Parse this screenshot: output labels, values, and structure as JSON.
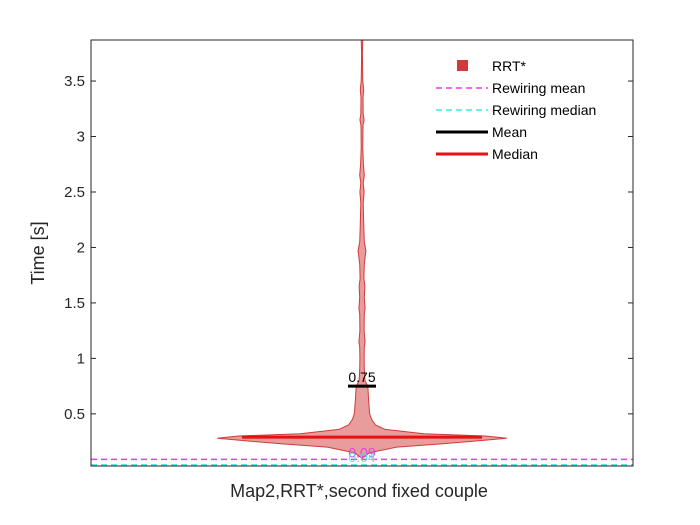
{
  "chart_data": {
    "type": "violin",
    "title": "",
    "xlabel": "Map2,RRT*,second fixed couple",
    "ylabel": "Time [s]",
    "ylim": [
      0.03,
      3.87
    ],
    "yticks": [
      0.5,
      1,
      1.5,
      2,
      2.5,
      3,
      3.5
    ],
    "ytick_labels": [
      "0.5",
      "1",
      "1.5",
      "2",
      "2.5",
      "3",
      "3.5"
    ],
    "grid": false,
    "legend_position": "top-right",
    "series": [
      {
        "name": "RRT*",
        "color": "#d23a3a",
        "mean": 0.75,
        "median": 0.29,
        "mean_label": "0.75",
        "density_profile": [
          [
            0.1,
            0.0
          ],
          [
            0.15,
            0.04
          ],
          [
            0.2,
            0.18
          ],
          [
            0.23,
            0.42
          ],
          [
            0.26,
            0.62
          ],
          [
            0.28,
            0.75
          ],
          [
            0.3,
            0.64
          ],
          [
            0.32,
            0.32
          ],
          [
            0.36,
            0.12
          ],
          [
            0.4,
            0.07
          ],
          [
            0.45,
            0.05
          ],
          [
            0.5,
            0.04
          ],
          [
            0.6,
            0.035
          ],
          [
            0.75,
            0.03
          ],
          [
            0.8,
            0.015
          ],
          [
            0.9,
            0.012
          ],
          [
            1.0,
            0.011
          ],
          [
            1.1,
            0.012
          ],
          [
            1.15,
            0.016
          ],
          [
            1.25,
            0.011
          ],
          [
            1.4,
            0.012
          ],
          [
            1.45,
            0.016
          ],
          [
            1.55,
            0.012
          ],
          [
            1.65,
            0.015
          ],
          [
            1.72,
            0.01
          ],
          [
            1.85,
            0.012
          ],
          [
            1.97,
            0.02
          ],
          [
            2.05,
            0.012
          ],
          [
            2.15,
            0.01
          ],
          [
            2.4,
            0.006
          ],
          [
            2.5,
            0.011
          ],
          [
            2.58,
            0.006
          ],
          [
            2.65,
            0.012
          ],
          [
            2.75,
            0.007
          ],
          [
            2.9,
            0.004
          ],
          [
            3.1,
            0.005
          ],
          [
            3.15,
            0.011
          ],
          [
            3.2,
            0.006
          ],
          [
            3.35,
            0.005
          ],
          [
            3.42,
            0.009
          ],
          [
            3.5,
            0.004
          ],
          [
            3.6,
            0.003
          ],
          [
            3.75,
            0.002
          ],
          [
            3.87,
            0.004
          ]
        ]
      },
      {
        "name": "Rewiring mean",
        "color": "#e83ee8",
        "value": 0.09,
        "value_label": "0.09",
        "style": "dashed"
      },
      {
        "name": "Rewiring median",
        "color": "#3ee8e0",
        "value": 0.04,
        "value_label": "0.04",
        "style": "dashed"
      },
      {
        "name": "Mean",
        "color": "#000000",
        "style": "solid"
      },
      {
        "name": "Median",
        "color": "#e81010",
        "style": "solid"
      }
    ]
  }
}
